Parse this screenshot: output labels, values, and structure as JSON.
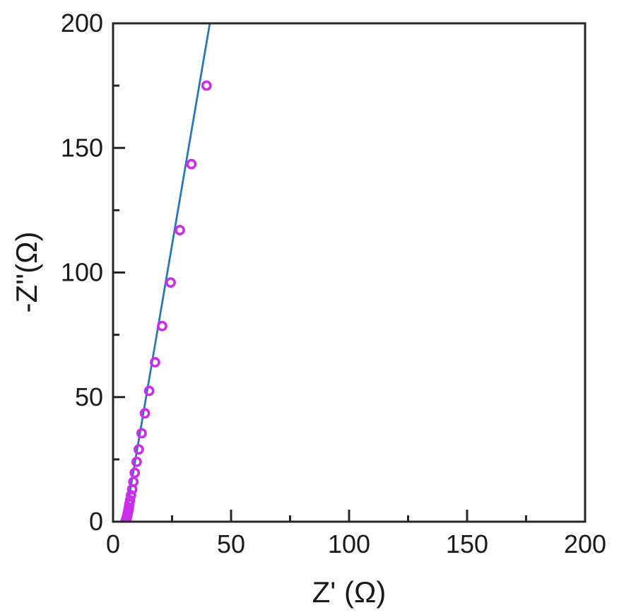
{
  "figure": {
    "background": "#ffffff"
  },
  "chart_data": {
    "type": "scatter",
    "title": "",
    "xlabel": "Z' (Ω)",
    "ylabel": "-Z''(Ω)",
    "xlim": [
      0,
      200
    ],
    "ylim": [
      0,
      200
    ],
    "x_major_ticks": [
      0,
      50,
      100,
      150,
      200
    ],
    "y_major_ticks": [
      0,
      50,
      100,
      150,
      200
    ],
    "x_minor_ticks": [
      25,
      75,
      125,
      175
    ],
    "y_minor_ticks": [
      25,
      75,
      125,
      175
    ],
    "grid": false,
    "legend": "none",
    "axis_color": "#262626",
    "series": [
      {
        "name": "fit-line",
        "type": "line",
        "color": "#2979b9",
        "width": 2.8,
        "points": [
          [
            5.0,
            0
          ],
          [
            41.0,
            200
          ]
        ]
      },
      {
        "name": "impedance-data",
        "type": "scatter",
        "marker": "open-circle",
        "color": "#cb2ee8",
        "marker_radius": 5.6,
        "marker_stroke": 3.6,
        "points": [
          [
            39.6,
            175.0
          ],
          [
            33.2,
            143.5
          ],
          [
            28.3,
            117.0
          ],
          [
            24.4,
            96.0
          ],
          [
            20.8,
            78.5
          ],
          [
            17.8,
            64.0
          ],
          [
            15.3,
            52.5
          ],
          [
            13.5,
            43.5
          ],
          [
            12.1,
            35.5
          ],
          [
            10.9,
            29.0
          ],
          [
            10.0,
            24.0
          ],
          [
            9.2,
            19.6
          ],
          [
            8.6,
            16.0
          ],
          [
            8.1,
            13.0
          ],
          [
            7.6,
            10.6
          ],
          [
            7.2,
            8.6
          ],
          [
            6.9,
            7.0
          ],
          [
            6.7,
            5.7
          ],
          [
            6.5,
            4.6
          ],
          [
            6.3,
            3.7
          ],
          [
            6.1,
            3.0
          ],
          [
            6.0,
            2.4
          ],
          [
            5.9,
            1.9
          ],
          [
            5.8,
            1.5
          ],
          [
            5.7,
            1.2
          ],
          [
            5.6,
            0.9
          ],
          [
            5.5,
            0.7
          ],
          [
            5.5,
            0.5
          ],
          [
            5.4,
            0.4
          ],
          [
            5.4,
            0.2
          ],
          [
            5.3,
            0.1
          ]
        ]
      }
    ]
  }
}
